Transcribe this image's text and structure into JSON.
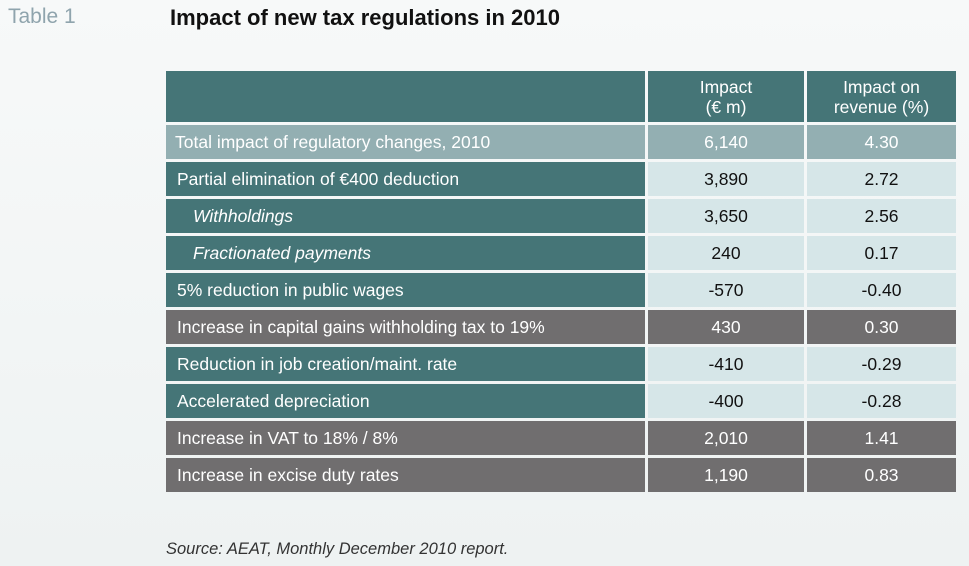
{
  "table_number": "Table 1",
  "title": "Impact of new tax regulations in 2010",
  "columns": {
    "label": "",
    "impact_line1": "Impact",
    "impact_line2": "(€ m)",
    "revenue_line1": "Impact on",
    "revenue_line2": "revenue (%)"
  },
  "rows": [
    {
      "label": "Total impact of regulatory changes, 2010",
      "impact": "6,140",
      "revenue": "4.30"
    },
    {
      "label": "Partial elimination of €400 deduction",
      "impact": "3,890",
      "revenue": "2.72"
    },
    {
      "label": "Withholdings",
      "impact": "3,650",
      "revenue": "2.56"
    },
    {
      "label": "Fractionated payments",
      "impact": "240",
      "revenue": "0.17"
    },
    {
      "label": "5% reduction in public wages",
      "impact": "-570",
      "revenue": "-0.40"
    },
    {
      "label": "Increase in capital gains withholding tax to 19%",
      "impact": "430",
      "revenue": "0.30"
    },
    {
      "label": "Reduction in job creation/maint. rate",
      "impact": "-410",
      "revenue": "-0.29"
    },
    {
      "label": "Accelerated depreciation",
      "impact": "-400",
      "revenue": "-0.28"
    },
    {
      "label": "Increase in VAT to 18% / 8%",
      "impact": "2,010",
      "revenue": "1.41"
    },
    {
      "label": "Increase in excise duty rates",
      "impact": "1,190",
      "revenue": "0.83"
    }
  ],
  "source": "Source: AEAT, Monthly December 2010 report.",
  "colors": {
    "teal_dark": "#457577",
    "teal_light": "#d6e6e8",
    "total_row": "#93afb2",
    "grey_row": "#706e6f",
    "table_number_text": "#8fa4ad"
  }
}
